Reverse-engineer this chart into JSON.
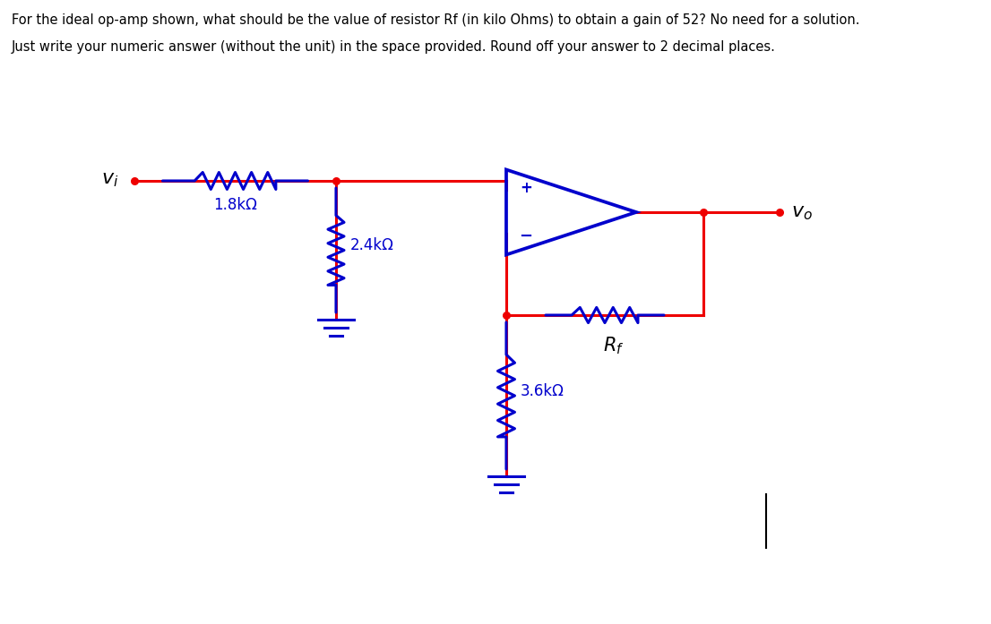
{
  "title_line1": "For the ideal op-amp shown, what should be the value of resistor Rf (in kilo Ohms) to obtain a gain of 52? No need for a solution.",
  "title_line2": "Just write your numeric answer (without the unit) in the space provided. Round off your answer to 2 decimal places.",
  "red_color": "#EE0000",
  "blue_color": "#0000CC",
  "black_color": "#000000",
  "bg_color": "#FFFFFF",
  "label_R1": "1.8kΩ",
  "label_R2": "2.4kΩ",
  "label_R3": "3.6kΩ",
  "lw": 2.2,
  "fig_w": 11.06,
  "fig_h": 6.97
}
